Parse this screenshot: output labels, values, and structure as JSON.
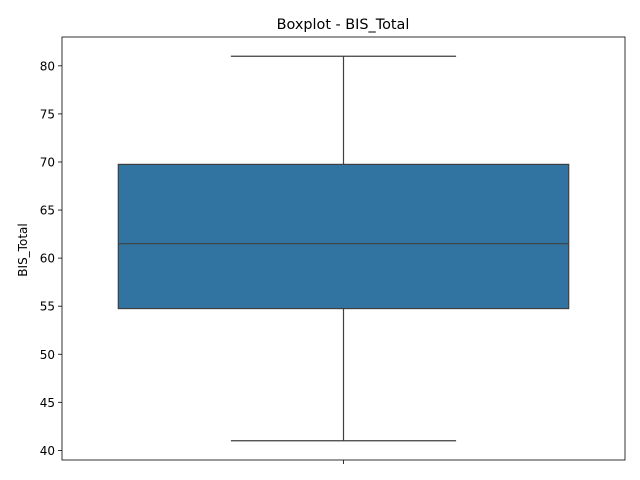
{
  "chart_data": {
    "type": "boxplot",
    "title": "Boxplot - BIS_Total",
    "xlabel": "",
    "ylabel": "BIS_Total",
    "ylim": [
      39.0,
      83.0
    ],
    "yticks": [
      40,
      45,
      50,
      55,
      60,
      65,
      70,
      75,
      80
    ],
    "grid": false,
    "series": [
      {
        "whisker_low": 41.0,
        "q1": 54.75,
        "median": 61.5,
        "q3": 69.75,
        "whisker_high": 81.0,
        "color": "#3274a1",
        "line_color": "#3f3f3f"
      }
    ]
  }
}
